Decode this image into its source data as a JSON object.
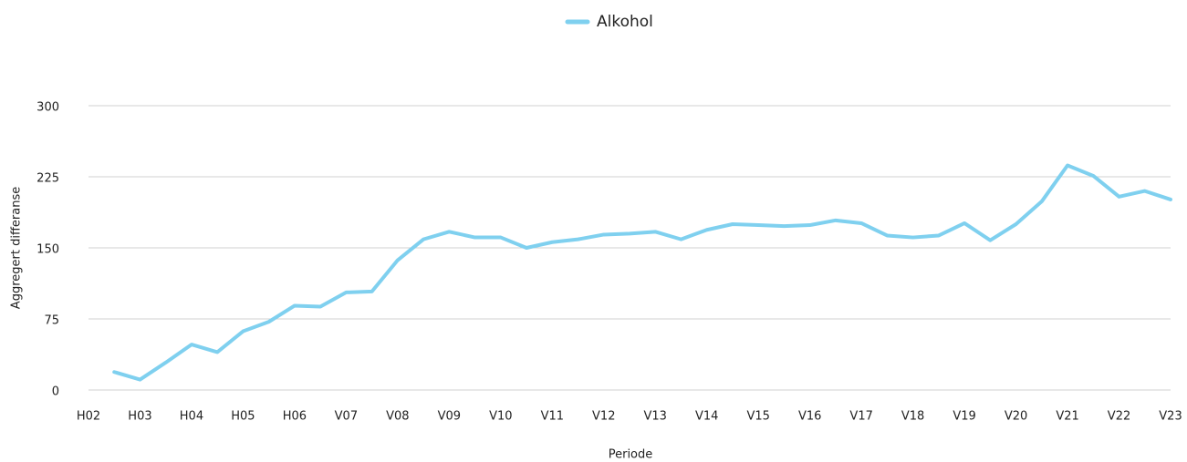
{
  "chart_data": {
    "type": "line",
    "x_label": "Periode",
    "y_label": "Aggregert differanse",
    "categories": [
      "H02",
      null,
      "H03",
      null,
      "H04",
      null,
      "H05",
      null,
      "H06",
      null,
      "V07",
      null,
      "V08",
      null,
      "V09",
      null,
      "V10",
      null,
      "V11",
      null,
      "V12",
      null,
      "V13",
      null,
      "V14",
      null,
      "V15",
      null,
      "V16",
      null,
      "V17",
      null,
      "V18",
      null,
      "V19",
      null,
      "V20",
      null,
      "V21",
      null,
      "V22",
      null,
      "V23"
    ],
    "series": [
      {
        "name": "Alkohol",
        "color": "#7fd0ef",
        "values": [
          null,
          19,
          11,
          29,
          48,
          40,
          62,
          72,
          89,
          88,
          103,
          104,
          137,
          159,
          167,
          161,
          161,
          150,
          156,
          159,
          164,
          165,
          167,
          159,
          169,
          175,
          174,
          173,
          174,
          179,
          176,
          163,
          161,
          163,
          176,
          158,
          175,
          199,
          237,
          226,
          204,
          210,
          201
        ]
      }
    ],
    "ylim": [
      0,
      300
    ],
    "yticks": [
      0,
      75,
      150,
      225,
      300
    ],
    "grid": true,
    "legend": "top"
  }
}
